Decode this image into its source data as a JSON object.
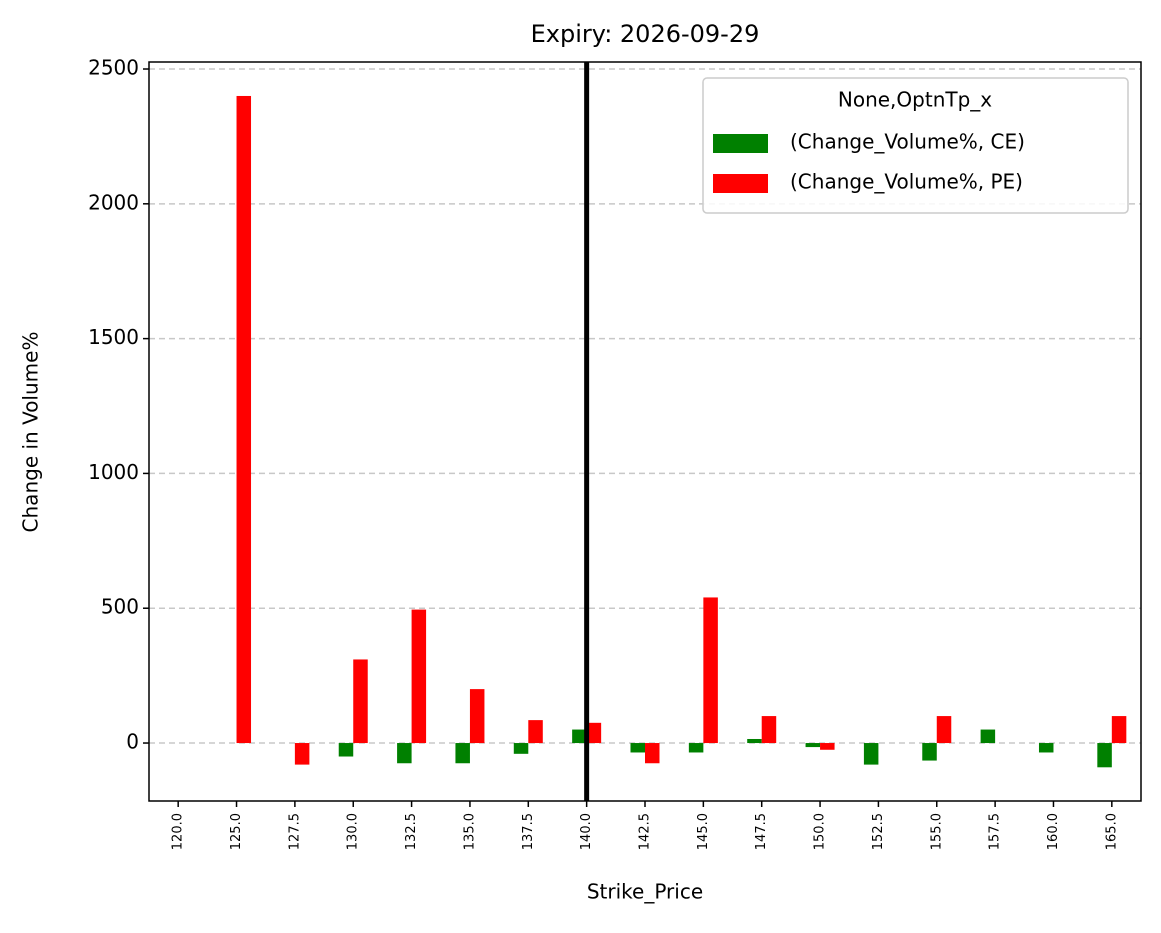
{
  "chart_data": {
    "type": "bar",
    "title": "Expiry: 2026-09-29",
    "x_label": "Strike_Price",
    "y_label": "Change in Volume%",
    "categories": [
      "120.0",
      "125.0",
      "127.5",
      "130.0",
      "132.5",
      "135.0",
      "137.5",
      "140.0",
      "142.5",
      "145.0",
      "147.5",
      "150.0",
      "152.5",
      "155.0",
      "157.5",
      "160.0",
      "165.0"
    ],
    "series": [
      {
        "name": "(Change_Volume%, CE)",
        "color": "#008000",
        "values": [
          null,
          null,
          null,
          -50,
          -75,
          -75,
          -40,
          50,
          -35,
          -35,
          15,
          -15,
          -80,
          -65,
          50,
          -35,
          -90
        ]
      },
      {
        "name": "(Change_Volume%, PE)",
        "color": "#ff0000",
        "values": [
          null,
          2400,
          -80,
          310,
          495,
          200,
          85,
          75,
          -75,
          540,
          100,
          -25,
          null,
          100,
          null,
          null,
          100
        ]
      }
    ],
    "legend_title": "None,OptnTp_x",
    "legend": "upper right",
    "ylim": [
      -215,
      2526
    ],
    "yticks": [
      0,
      500,
      1000,
      1500,
      2000,
      2500
    ],
    "grid": true,
    "vline_index": 7
  }
}
